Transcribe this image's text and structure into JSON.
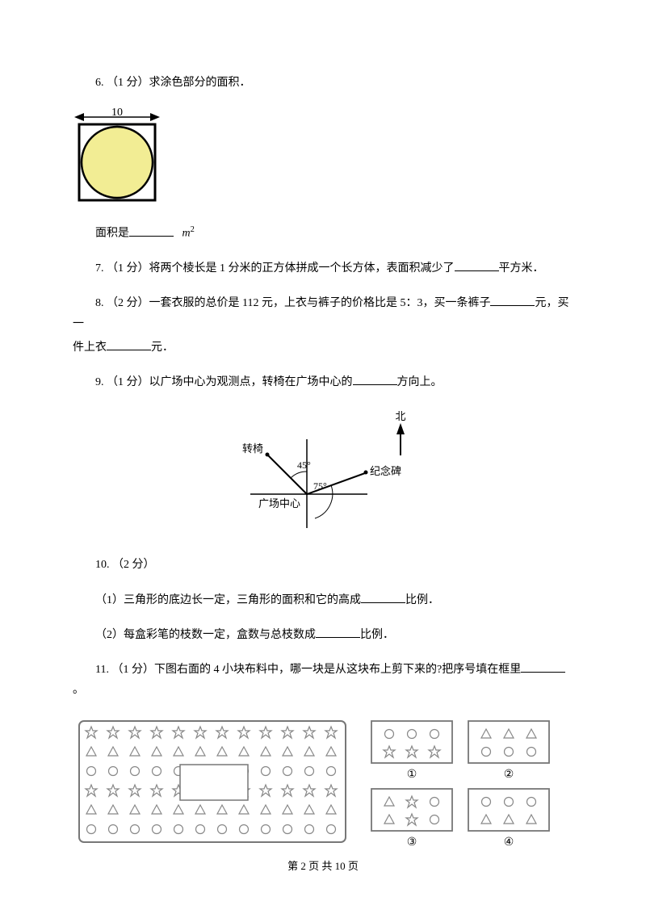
{
  "q6": {
    "text": "6.  （1 分）求涂色部分的面积．",
    "figure": {
      "width_label": "10",
      "square_stroke": "#000000",
      "circle_fill": "#f2ed94",
      "circle_stroke": "#000000"
    },
    "answer_line_pre": "面积是",
    "unit_m": "m",
    "unit_sup": "2"
  },
  "q7": {
    "pre": "7.  （1 分）将两个棱长是 1 分米的正方体拼成一个长方体，表面积减少了",
    "post": "平方米．"
  },
  "q8": {
    "line1_pre": "8.   （2 分）一套衣服的总价是 112 元，上衣与裤子的价格比是 5：3，买一条裤子",
    "line1_post": "元，买一",
    "line2_pre": "件上衣",
    "line2_post": "元．"
  },
  "q9": {
    "pre": "9.  （1 分）以广场中心为观测点，转椅在广场中心的",
    "post": "方向上。",
    "figure": {
      "north": "北",
      "chair": "转椅",
      "monument": "纪念碑",
      "center": "广场中心",
      "angle1": "45°",
      "angle2": "75°",
      "stroke": "#000000"
    }
  },
  "q10": {
    "header": "10.  （2 分）",
    "p1_pre": "（1）三角形的底边长一定，三角形的面积和它的高成",
    "p1_post": "比例．",
    "p2_pre": "（2）每盒彩笔的枝数一定，盒数与总枝数成",
    "p2_post": "比例．"
  },
  "q11": {
    "pre": "11.  （1 分）下图右面的 4 小块布料中，哪一块是从这块布上剪下来的?把序号填在框里",
    "post": "。",
    "labels": {
      "a": "①",
      "b": "②",
      "c": "③",
      "d": "④"
    },
    "colors": {
      "border": "#777777",
      "shape": "#888888"
    }
  },
  "footer": {
    "pre": "第 ",
    "page": "2",
    "mid": " 页 共 ",
    "total": "10",
    "post": " 页"
  }
}
